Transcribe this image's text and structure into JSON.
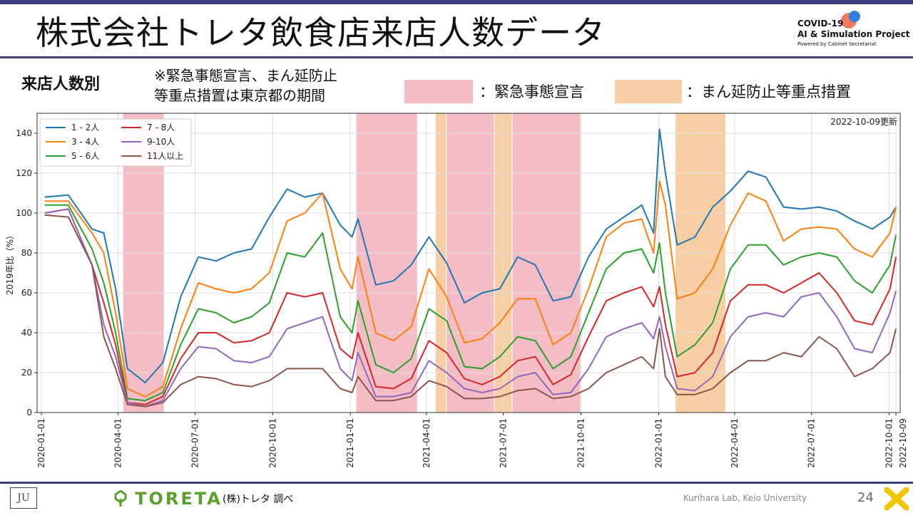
{
  "slide": {
    "title": "株式会社トレタ飲食店来店人数データ",
    "logo": {
      "line1": "COVID-19",
      "line2": "AI & Simulation Project",
      "line3": "Powered by Cabinet Secretariat"
    },
    "subheading": "来店人数別",
    "note_line1": "※緊急事態宣言、まん延防止",
    "note_line2": "等重点措置は東京都の期間",
    "legend_emergency": "：緊急事態宣言",
    "legend_priority": "：まん延防止等重点措置",
    "footer_left_logo": "JU",
    "company": "TORETA",
    "source": "(株)トレタ 調べ",
    "lab": "Kurihara Lab, Keio University",
    "page": "24",
    "colors": {
      "accent": "#3b3f7a",
      "emergency": "#f4bcc4",
      "priority": "#f8cfa5",
      "toreta_green": "#5aa02c"
    }
  },
  "chart_data": {
    "type": "line",
    "update_note": "2022-10-09更新",
    "ylabel": "2019年比（%）",
    "xlabel": "",
    "ylim": [
      0,
      150
    ],
    "yticks": [
      0,
      20,
      40,
      60,
      80,
      100,
      120,
      140
    ],
    "xlim": [
      "2020-01-01",
      "2022-10-09"
    ],
    "xticks": [
      "2020-01-01",
      "2020-04-01",
      "2020-07-01",
      "2020-10-01",
      "2021-01-01",
      "2021-04-01",
      "2021-07-01",
      "2021-10-01",
      "2022-01-01",
      "2022-04-01",
      "2022-07-01",
      "2022-10-01",
      "2022-10-09"
    ],
    "grid": true,
    "legend_position": "top-left",
    "shaded_periods": [
      {
        "kind": "emergency",
        "start": "2020-04-07",
        "end": "2020-05-25"
      },
      {
        "kind": "emergency",
        "start": "2021-01-08",
        "end": "2021-03-21"
      },
      {
        "kind": "priority",
        "start": "2021-04-12",
        "end": "2021-04-24"
      },
      {
        "kind": "emergency",
        "start": "2021-04-25",
        "end": "2021-06-20"
      },
      {
        "kind": "priority",
        "start": "2021-06-21",
        "end": "2021-07-11"
      },
      {
        "kind": "emergency",
        "start": "2021-07-12",
        "end": "2021-09-30"
      },
      {
        "kind": "priority",
        "start": "2022-01-21",
        "end": "2022-03-21"
      }
    ],
    "x": [
      "2020-01-05",
      "2020-02-02",
      "2020-03-01",
      "2020-03-15",
      "2020-03-29",
      "2020-04-12",
      "2020-05-03",
      "2020-05-24",
      "2020-06-14",
      "2020-07-05",
      "2020-07-26",
      "2020-08-16",
      "2020-09-06",
      "2020-09-27",
      "2020-10-18",
      "2020-11-08",
      "2020-11-29",
      "2020-12-20",
      "2021-01-03",
      "2021-01-10",
      "2021-01-31",
      "2021-02-21",
      "2021-03-14",
      "2021-04-04",
      "2021-04-25",
      "2021-05-16",
      "2021-06-06",
      "2021-06-27",
      "2021-07-18",
      "2021-08-08",
      "2021-08-29",
      "2021-09-19",
      "2021-10-10",
      "2021-10-31",
      "2021-11-21",
      "2021-12-12",
      "2021-12-26",
      "2022-01-02",
      "2022-01-09",
      "2022-01-23",
      "2022-02-13",
      "2022-03-06",
      "2022-03-27",
      "2022-04-17",
      "2022-05-08",
      "2022-05-29",
      "2022-06-19",
      "2022-07-10",
      "2022-07-31",
      "2022-08-21",
      "2022-09-11",
      "2022-10-02",
      "2022-10-09"
    ],
    "series": [
      {
        "name": "1 - 2人",
        "color": "#1f77b4",
        "values": [
          108,
          109,
          92,
          90,
          62,
          22,
          15,
          25,
          58,
          78,
          76,
          80,
          82,
          98,
          112,
          108,
          110,
          94,
          88,
          97,
          64,
          66,
          74,
          88,
          75,
          55,
          60,
          62,
          78,
          74,
          56,
          58,
          78,
          92,
          98,
          104,
          90,
          142,
          120,
          84,
          88,
          103,
          111,
          121,
          118,
          103,
          102,
          103,
          101,
          96,
          92,
          98,
          103
        ]
      },
      {
        "name": "3 - 4人",
        "color": "#ff7f0e",
        "values": [
          106,
          106,
          90,
          80,
          50,
          12,
          8,
          13,
          42,
          65,
          62,
          60,
          62,
          70,
          96,
          100,
          110,
          72,
          62,
          78,
          40,
          36,
          43,
          72,
          58,
          35,
          37,
          45,
          57,
          57,
          34,
          40,
          62,
          88,
          95,
          97,
          80,
          116,
          104,
          57,
          60,
          72,
          94,
          110,
          106,
          86,
          92,
          93,
          92,
          82,
          78,
          90,
          103
        ]
      },
      {
        "name": "5 - 6人",
        "color": "#2ca02c",
        "values": [
          104,
          104,
          82,
          65,
          40,
          7,
          6,
          10,
          34,
          52,
          50,
          45,
          48,
          55,
          80,
          78,
          90,
          48,
          40,
          56,
          24,
          20,
          27,
          52,
          46,
          23,
          22,
          28,
          38,
          36,
          22,
          28,
          50,
          72,
          80,
          82,
          70,
          85,
          60,
          28,
          34,
          45,
          72,
          84,
          84,
          74,
          78,
          80,
          78,
          66,
          60,
          74,
          89
        ]
      },
      {
        "name": "7 - 8人",
        "color": "#d62728",
        "values": [
          100,
          102,
          74,
          55,
          34,
          5,
          4,
          8,
          27,
          40,
          40,
          35,
          36,
          40,
          60,
          58,
          60,
          32,
          27,
          40,
          13,
          12,
          17,
          36,
          30,
          17,
          14,
          18,
          26,
          28,
          14,
          19,
          38,
          56,
          60,
          63,
          53,
          63,
          44,
          18,
          20,
          30,
          56,
          64,
          64,
          60,
          65,
          70,
          60,
          46,
          44,
          62,
          78
        ]
      },
      {
        "name": "9-10人",
        "color": "#9467bd",
        "values": [
          100,
          102,
          74,
          44,
          28,
          5,
          3,
          6,
          22,
          33,
          32,
          26,
          25,
          28,
          42,
          45,
          48,
          22,
          16,
          30,
          8,
          8,
          10,
          26,
          20,
          12,
          10,
          12,
          18,
          20,
          9,
          10,
          22,
          38,
          42,
          45,
          37,
          48,
          33,
          12,
          11,
          18,
          38,
          48,
          50,
          48,
          58,
          60,
          48,
          32,
          30,
          50,
          61
        ]
      },
      {
        "name": "11人以上",
        "color": "#8c564b",
        "values": [
          99,
          98,
          74,
          38,
          22,
          4,
          3,
          5,
          14,
          18,
          17,
          14,
          13,
          16,
          22,
          22,
          22,
          12,
          10,
          18,
          6,
          6,
          8,
          16,
          13,
          7,
          7,
          8,
          11,
          12,
          7,
          8,
          12,
          20,
          24,
          28,
          22,
          42,
          18,
          9,
          9,
          12,
          20,
          26,
          26,
          30,
          28,
          38,
          32,
          18,
          22,
          30,
          42
        ]
      }
    ]
  }
}
